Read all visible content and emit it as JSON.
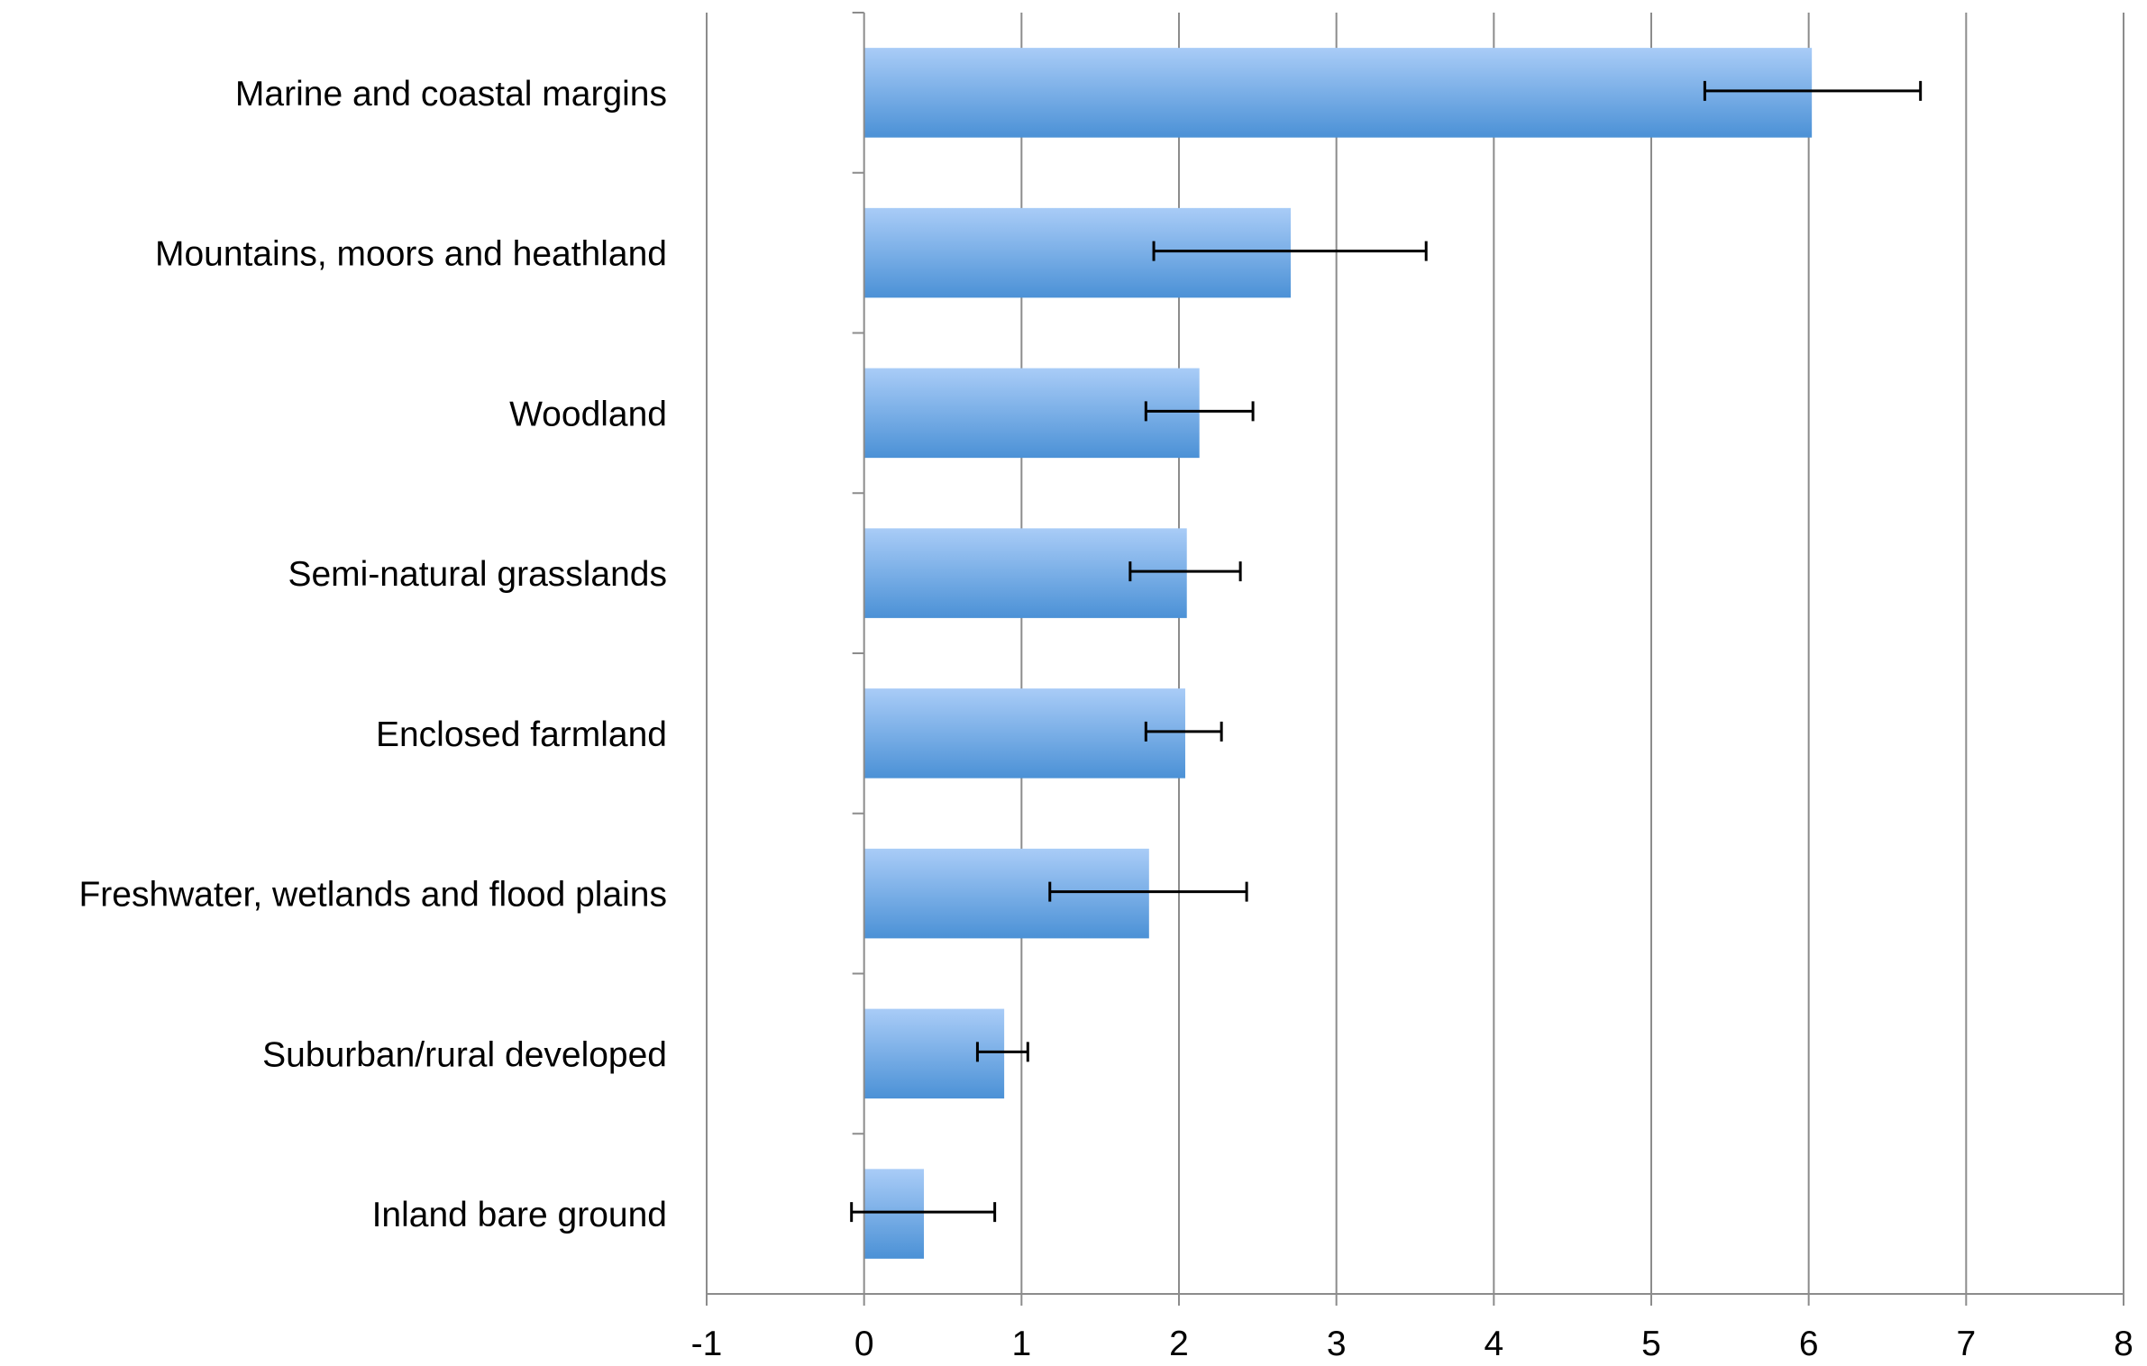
{
  "chart_data": {
    "type": "bar",
    "orientation": "horizontal",
    "categories": [
      "Marine and coastal margins",
      "Mountains, moors and heathland",
      "Woodland",
      "Semi-natural grasslands",
      "Enclosed farmland",
      "Freshwater, wetlands and flood plains",
      "Suburban/rural developed",
      "Inland bare ground"
    ],
    "values": [
      6.02,
      2.71,
      2.13,
      2.05,
      2.04,
      1.81,
      0.89,
      0.38
    ],
    "error_low": [
      5.34,
      1.84,
      1.79,
      1.69,
      1.79,
      1.18,
      0.72,
      -0.08
    ],
    "error_high": [
      6.71,
      3.57,
      2.47,
      2.39,
      2.27,
      2.43,
      1.04,
      0.83
    ],
    "xlim": [
      -1,
      8
    ],
    "x_ticks": [
      "-1",
      "0",
      "1",
      "2",
      "3",
      "4",
      "5",
      "6",
      "7",
      "8"
    ],
    "grid": "vertical",
    "title": "",
    "xlabel": "",
    "ylabel": "",
    "colors": {
      "bar_top": "#a9ccf7",
      "bar_bottom": "#4b91d6",
      "grid": "#8c8c8c",
      "axis": "#8c8c8c",
      "error_bar": "#000000"
    }
  }
}
